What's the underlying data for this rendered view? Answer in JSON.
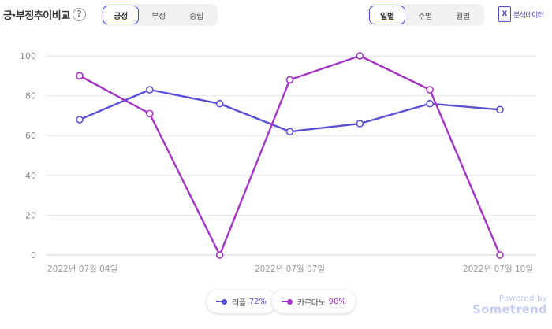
{
  "header": {
    "title": "긍·부정추이비교",
    "help_glyph": "?",
    "sentiment_tabs": [
      {
        "label": "긍정",
        "active": true
      },
      {
        "label": "부정",
        "active": false
      },
      {
        "label": "중립",
        "active": false
      }
    ],
    "period_tabs": [
      {
        "label": "일별",
        "active": true
      },
      {
        "label": "주별",
        "active": false
      },
      {
        "label": "월별",
        "active": false
      }
    ],
    "export_label": "분석데이터",
    "export_icon": "excel-icon",
    "export_glyph": "X"
  },
  "chart_data": {
    "type": "line",
    "x_index": [
      0,
      1,
      2,
      3,
      4,
      5,
      6
    ],
    "x_tick_labels": [
      {
        "index": 0,
        "label": "2022년 07월 04일"
      },
      {
        "index": 3,
        "label": "2022년 07월 07일"
      },
      {
        "index": 6,
        "label": "2022년 07월 10일"
      }
    ],
    "ylim": [
      0,
      100
    ],
    "y_ticks": [
      0,
      20,
      40,
      60,
      80,
      100
    ],
    "grid": true,
    "legend_position": "bottom-center",
    "series": [
      {
        "name": "리플",
        "legend_value": "72%",
        "color": "#5b4fd6",
        "values": [
          68,
          83,
          76,
          62,
          66,
          76,
          73
        ]
      },
      {
        "name": "카르다노",
        "legend_value": "90%",
        "color": "#a335c4",
        "values": [
          90,
          71,
          0,
          88,
          100,
          83,
          0
        ]
      }
    ]
  },
  "branding": {
    "powered": "Powered by",
    "name": "Sometrend"
  }
}
